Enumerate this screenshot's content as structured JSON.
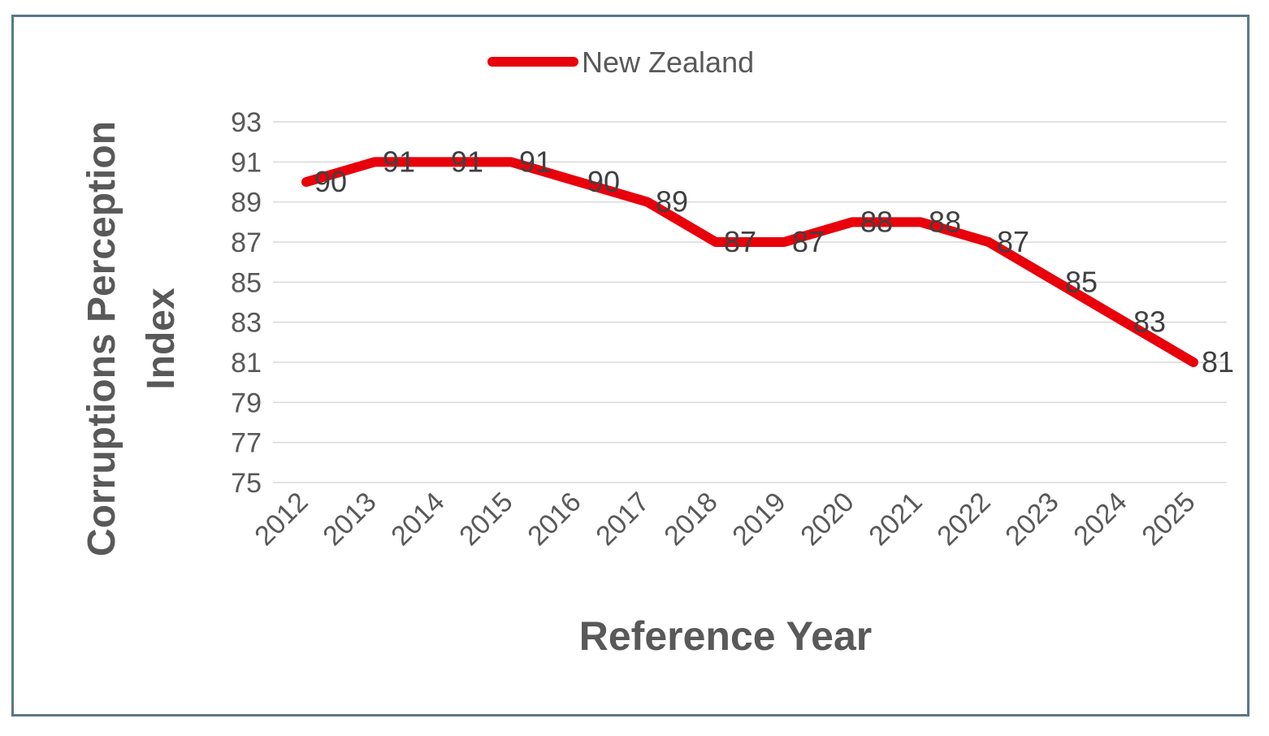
{
  "chart_data": {
    "type": "line",
    "title": "",
    "xlabel": "Reference Year",
    "ylabel": "Corruptions Perception Index",
    "categories": [
      "2012",
      "2013",
      "2014",
      "2015",
      "2016",
      "2017",
      "2018",
      "2019",
      "2020",
      "2021",
      "2022",
      "2023",
      "2024",
      "2025"
    ],
    "series": [
      {
        "name": "New Zealand",
        "color": "#e8000b",
        "values": [
          90,
          91,
          91,
          91,
          90,
          89,
          87,
          87,
          88,
          88,
          87,
          85,
          83,
          81
        ]
      }
    ],
    "yticks": [
      75,
      77,
      79,
      81,
      83,
      85,
      87,
      89,
      91,
      93
    ],
    "ylim": [
      75,
      93
    ],
    "grid": true,
    "legend_position": "top"
  }
}
